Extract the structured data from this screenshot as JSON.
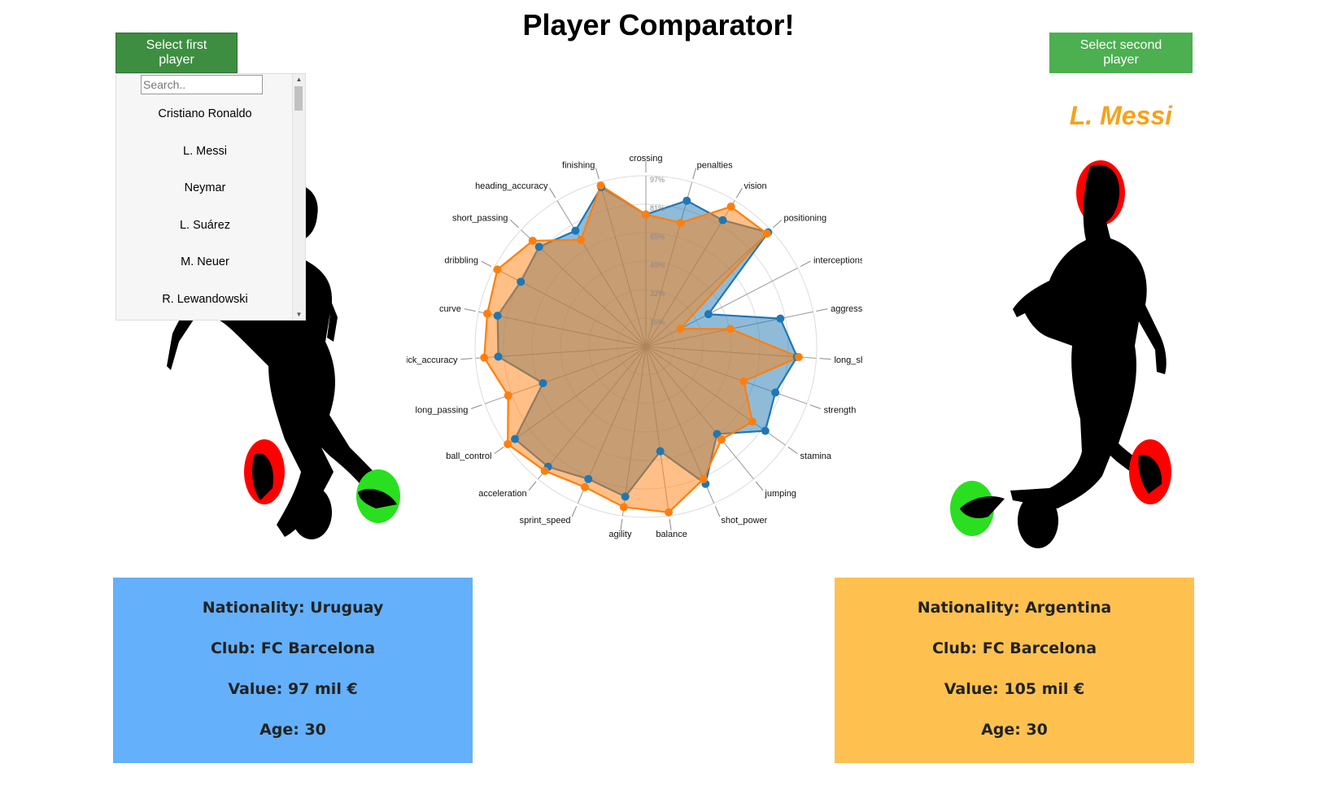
{
  "page_title": "Player Comparator!",
  "buttons": {
    "first": "Select first player",
    "second": "Select second player"
  },
  "dropdown": {
    "search_placeholder": "Search..",
    "items": [
      "Cristiano Ronaldo",
      "L. Messi",
      "Neymar",
      "L. Suárez",
      "M. Neuer",
      "R. Lewandowski"
    ]
  },
  "second_player_name": "L. Messi",
  "player1_info": {
    "nationality": "Nationality: Uruguay",
    "club": "Club: FC Barcelona",
    "value": "Value: 97 mil €",
    "age": "Age: 30"
  },
  "player2_info": {
    "nationality": "Nationality: Argentina",
    "club": "Club: FC Barcelona",
    "value": "Value: 105 mil €",
    "age": "Age: 30"
  },
  "colors": {
    "player1": "#1f77b4",
    "player2": "#ff7f0e",
    "info1_bg": "#64b0fa",
    "info2_bg": "#fec150",
    "button": "#4caf50",
    "name2": "#f6a21a"
  },
  "chart_data": {
    "type": "radar",
    "categories": [
      "crossing",
      "penalties",
      "vision",
      "positioning",
      "interceptions",
      "aggression",
      "long_shots",
      "strength",
      "stamina",
      "jumping",
      "shot_power",
      "balance",
      "agility",
      "sprint_speed",
      "acceleration",
      "ball_control",
      "long_passing",
      "free_kick_accuracy",
      "curve",
      "dribbling",
      "short_passing",
      "heading_accuracy",
      "finishing"
    ],
    "radial_ticks": [
      "16%",
      "32%",
      "49%",
      "65%",
      "81%",
      "97%"
    ],
    "rmax": 97,
    "series": [
      {
        "values": [
          75,
          86,
          84,
          95,
          40,
          78,
          86,
          78,
          83,
          64,
          85,
          60,
          86,
          82,
          88,
          91,
          62,
          84,
          86,
          80,
          83,
          77,
          94
        ]
      },
      {
        "values": [
          75,
          73,
          93,
          94,
          22,
          49,
          87,
          59,
          74,
          68,
          82,
          95,
          92,
          87,
          91,
          96,
          83,
          92,
          92,
          95,
          88,
          71,
          95
        ]
      }
    ]
  }
}
